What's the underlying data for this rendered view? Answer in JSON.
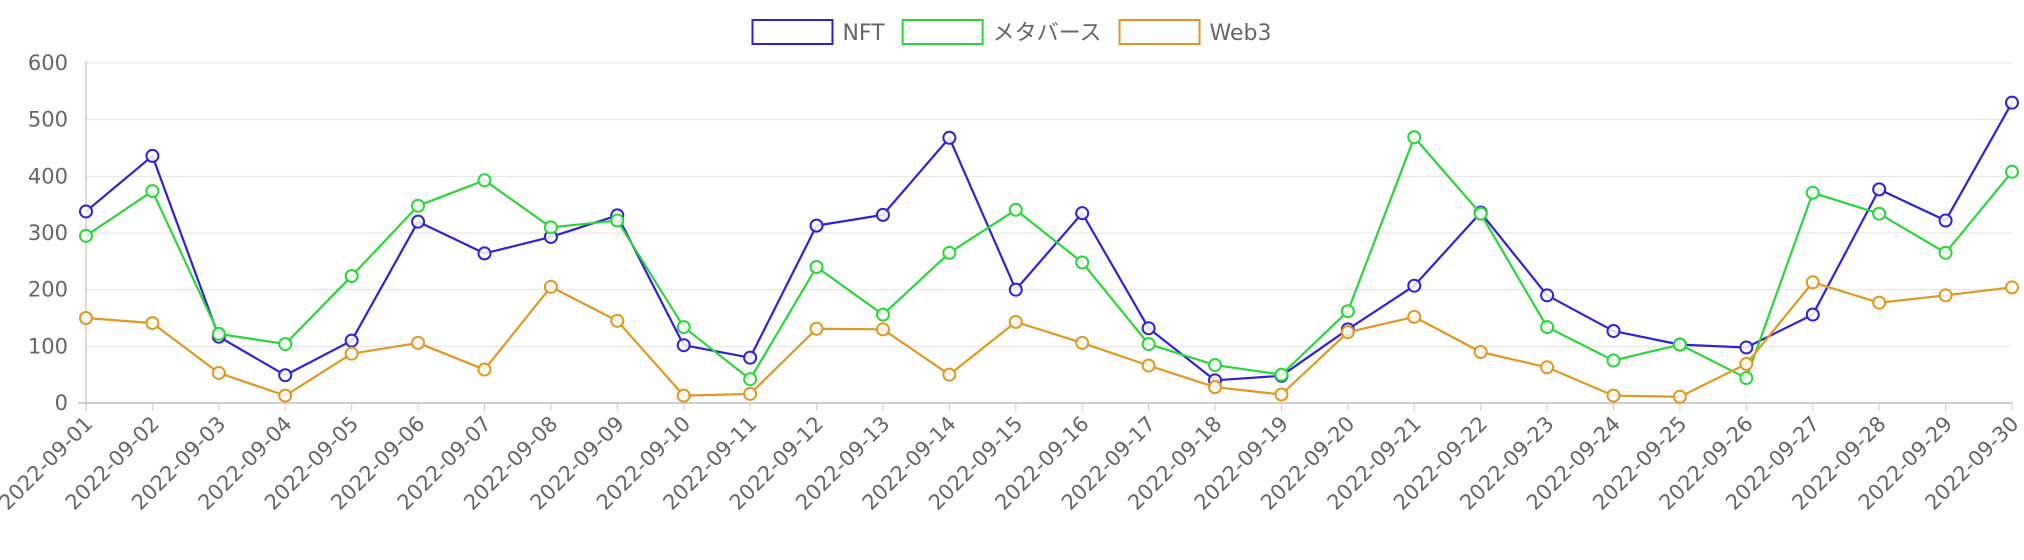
{
  "chart_data": {
    "type": "line",
    "title": "",
    "xlabel": "",
    "ylabel": "",
    "ylim": [
      0,
      600
    ],
    "yticks": [
      0,
      100,
      200,
      300,
      400,
      500,
      600
    ],
    "grid": "horizontal",
    "legend": "top-center",
    "categories": [
      "2022-09-01",
      "2022-09-02",
      "2022-09-03",
      "2022-09-04",
      "2022-09-05",
      "2022-09-06",
      "2022-09-07",
      "2022-09-08",
      "2022-09-09",
      "2022-09-10",
      "2022-09-11",
      "2022-09-12",
      "2022-09-13",
      "2022-09-14",
      "2022-09-15",
      "2022-09-16",
      "2022-09-17",
      "2022-09-18",
      "2022-09-19",
      "2022-09-20",
      "2022-09-21",
      "2022-09-22",
      "2022-09-23",
      "2022-09-24",
      "2022-09-25",
      "2022-09-26",
      "2022-09-27",
      "2022-09-28",
      "2022-09-29",
      "2022-09-30"
    ],
    "series": [
      {
        "name": "NFT",
        "color": "#3021d6",
        "values": [
          338,
          436,
          117,
          49,
          110,
          320,
          264,
          293,
          331,
          102,
          80,
          313,
          332,
          468,
          200,
          335,
          132,
          40,
          48,
          130,
          207,
          336,
          190,
          127,
          103,
          98,
          156,
          377,
          322,
          530
        ]
      },
      {
        "name": "メタバース",
        "color": "#2bd63a",
        "values": [
          295,
          374,
          122,
          104,
          224,
          348,
          393,
          310,
          322,
          134,
          42,
          240,
          156,
          265,
          341,
          248,
          104,
          67,
          50,
          162,
          469,
          334,
          134,
          75,
          103,
          44,
          371,
          334,
          265,
          408
        ]
      },
      {
        "name": "Web3",
        "color": "#e0991f",
        "values": [
          150,
          141,
          53,
          13,
          87,
          106,
          59,
          205,
          145,
          13,
          16,
          131,
          130,
          50,
          143,
          106,
          66,
          28,
          15,
          125,
          152,
          90,
          63,
          13,
          11,
          69,
          213,
          177,
          190,
          204
        ]
      }
    ]
  }
}
